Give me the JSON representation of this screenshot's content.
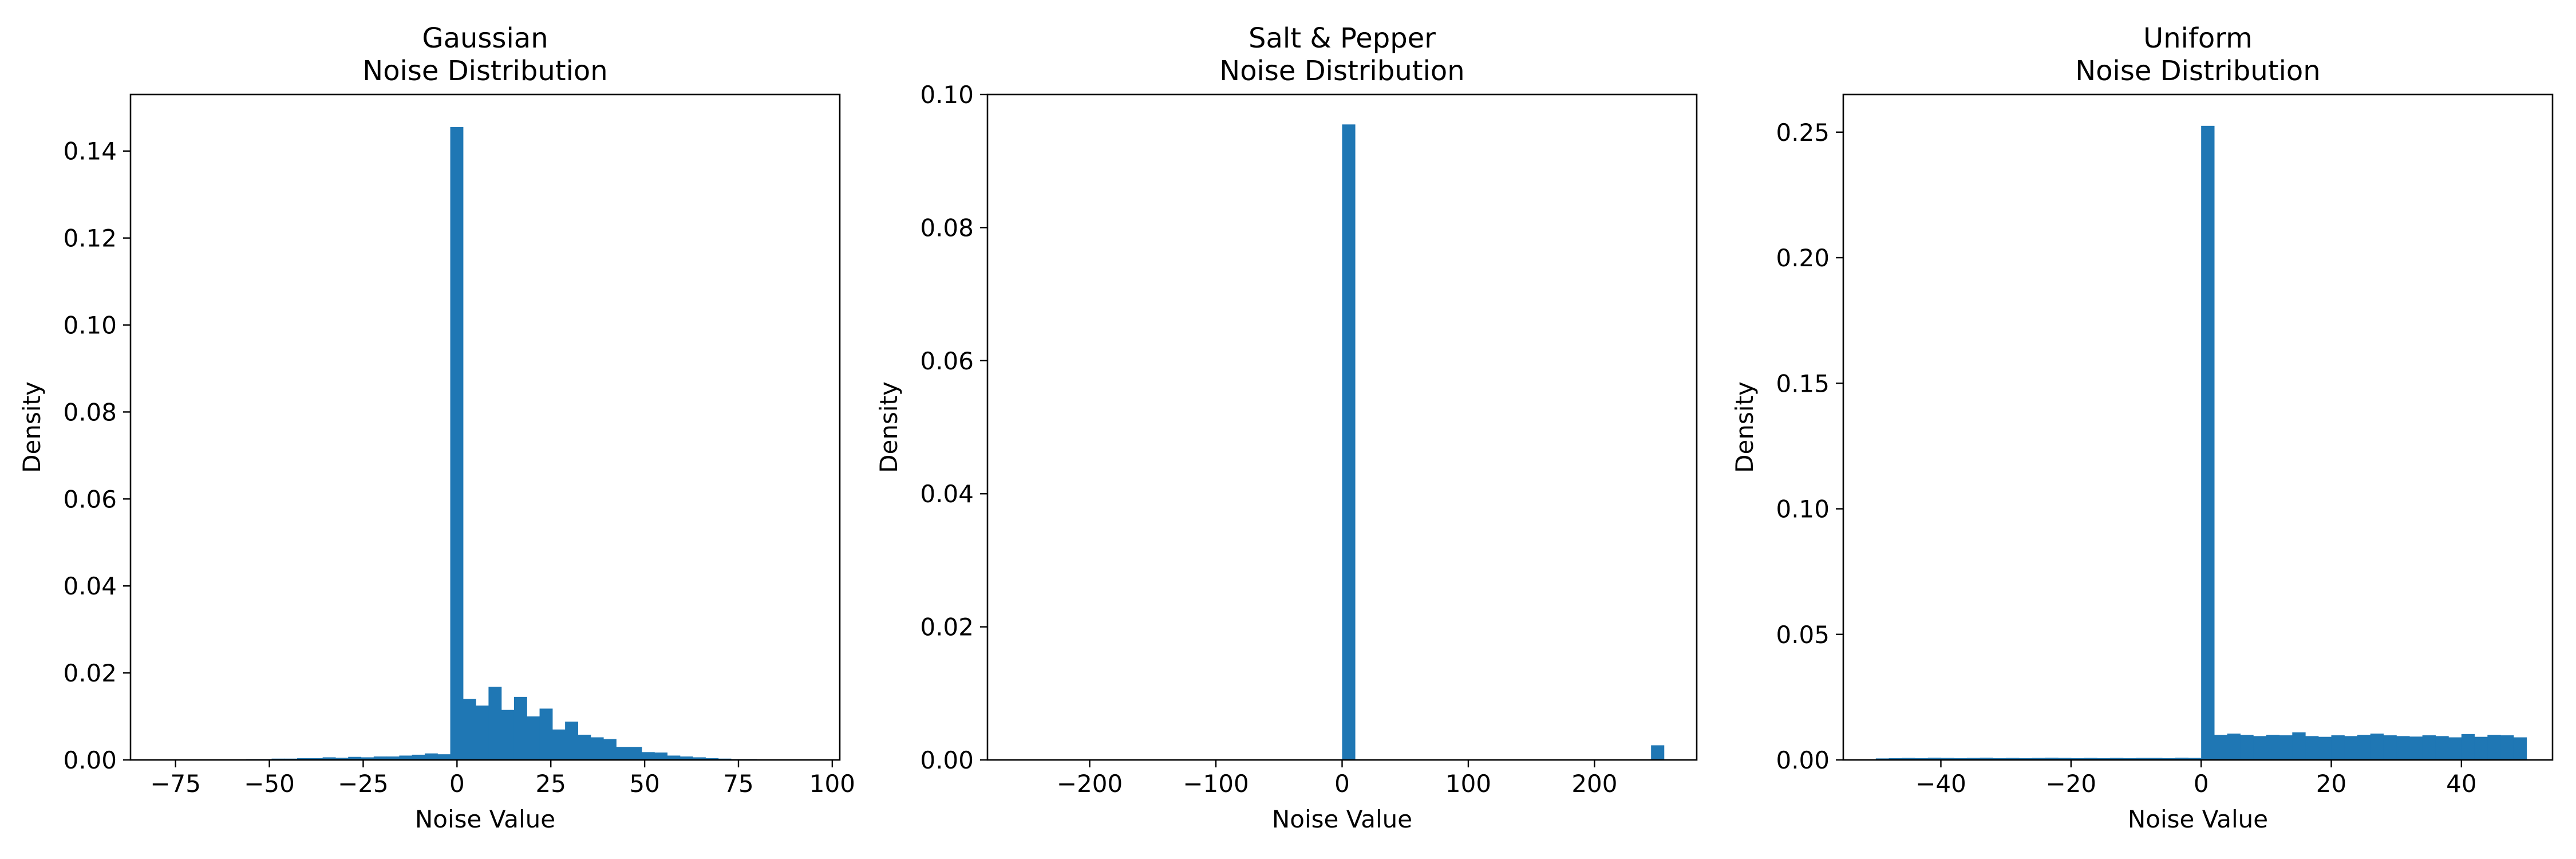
{
  "chart_data": [
    {
      "type": "bar",
      "title": "Gaussian\nNoise Distribution",
      "xlabel": "Noise Value",
      "ylabel": "Density",
      "xlim": [
        -87,
        102
      ],
      "ylim": [
        0,
        0.153
      ],
      "xticks": [
        -75,
        -50,
        -25,
        0,
        25,
        50,
        75,
        100
      ],
      "xtick_labels": [
        "−75",
        "−50",
        "−25",
        "0",
        "25",
        "50",
        "75",
        "100"
      ],
      "yticks": [
        0,
        0.02,
        0.04,
        0.06,
        0.08,
        0.1,
        0.12,
        0.14
      ],
      "ytick_labels": [
        "0.00",
        "0.02",
        "0.04",
        "0.06",
        "0.08",
        "0.10",
        "0.12",
        "0.14"
      ],
      "grid": false,
      "bar_color": "#1f77b4",
      "bins": {
        "start": -63,
        "width": 3.4,
        "values": [
          0.0001,
          0.0001,
          0.0002,
          0.0002,
          0.0003,
          0.0003,
          0.0004,
          0.0004,
          0.0006,
          0.0005,
          0.0007,
          0.0006,
          0.0008,
          0.0008,
          0.001,
          0.0012,
          0.0015,
          0.0013,
          0.1455,
          0.014,
          0.0125,
          0.0168,
          0.0115,
          0.0145,
          0.01,
          0.0118,
          0.007,
          0.0088,
          0.0058,
          0.0052,
          0.0048,
          0.003,
          0.003,
          0.0018,
          0.0017,
          0.001,
          0.0008,
          0.0006,
          0.0004,
          0.0003,
          0.0002,
          0.0002,
          0.0001,
          0.0001,
          0.0001,
          0.0001
        ]
      }
    },
    {
      "type": "bar",
      "title": "Salt & Pepper\nNoise Distribution",
      "xlabel": "Noise Value",
      "ylabel": "Density",
      "xlim": [
        -281,
        281
      ],
      "ylim": [
        0,
        0.1
      ],
      "xticks": [
        -200,
        -100,
        0,
        100,
        200
      ],
      "xtick_labels": [
        "−200",
        "−100",
        "0",
        "100",
        "200"
      ],
      "yticks": [
        0,
        0.02,
        0.04,
        0.06,
        0.08,
        0.1
      ],
      "ytick_labels": [
        "0.00",
        "0.02",
        "0.04",
        "0.06",
        "0.08",
        "0.10"
      ],
      "grid": false,
      "bar_color": "#1f77b4",
      "bars": [
        {
          "x0": 0,
          "x1": 10.2,
          "value": 0.0955
        },
        {
          "x0": 244.8,
          "x1": 255,
          "value": 0.0022
        }
      ]
    },
    {
      "type": "bar",
      "title": "Uniform\nNoise Distribution",
      "xlabel": "Noise Value",
      "ylabel": "Density",
      "xlim": [
        -55,
        54
      ],
      "ylim": [
        0,
        0.265
      ],
      "xticks": [
        -40,
        -20,
        0,
        20,
        40
      ],
      "xtick_labels": [
        "−40",
        "−20",
        "0",
        "20",
        "40"
      ],
      "yticks": [
        0,
        0.05,
        0.1,
        0.15,
        0.2,
        0.25
      ],
      "ytick_labels": [
        "0.00",
        "0.05",
        "0.10",
        "0.15",
        "0.20",
        "0.25"
      ],
      "grid": false,
      "bar_color": "#1f77b4",
      "bins": {
        "start": -50,
        "width": 2,
        "values": [
          0.0006,
          0.0007,
          0.0008,
          0.0007,
          0.0009,
          0.0008,
          0.0007,
          0.0008,
          0.0009,
          0.0007,
          0.0008,
          0.0007,
          0.0008,
          0.0009,
          0.0008,
          0.0007,
          0.0008,
          0.0007,
          0.0008,
          0.0007,
          0.0008,
          0.0008,
          0.0007,
          0.0009,
          0.0008,
          0.2525,
          0.01,
          0.0105,
          0.01,
          0.0095,
          0.01,
          0.0098,
          0.011,
          0.0095,
          0.0092,
          0.0098,
          0.0095,
          0.01,
          0.0105,
          0.0098,
          0.0095,
          0.0093,
          0.0098,
          0.0095,
          0.009,
          0.0103,
          0.0092,
          0.01,
          0.0098,
          0.009
        ]
      }
    }
  ]
}
